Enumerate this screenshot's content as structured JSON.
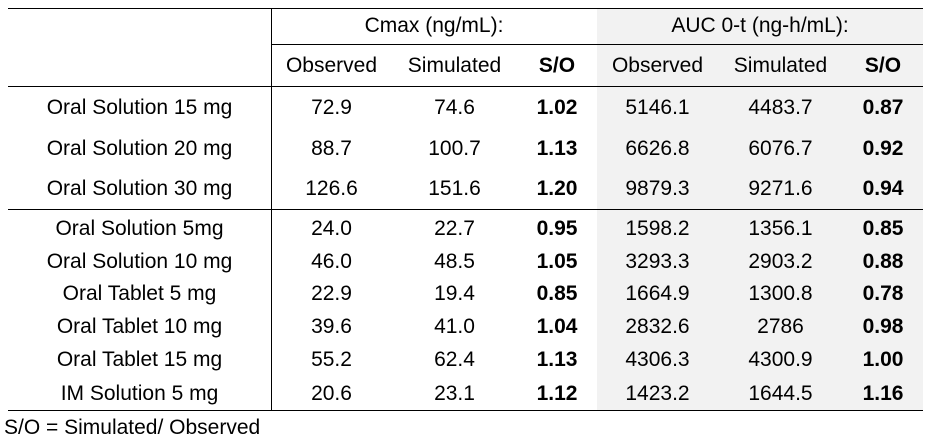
{
  "table": {
    "group_headers": [
      "Cmax (ng/mL):",
      "AUC 0-t (ng-h/mL):"
    ],
    "sub_headers": [
      "Observed",
      "Simulated",
      "S/O",
      "Observed",
      "Simulated",
      "S/O"
    ],
    "rows": [
      {
        "label": "Oral Solution 15 mg",
        "values": [
          "72.9",
          "74.6",
          "1.02",
          "5146.1",
          "4483.7",
          "0.87"
        ]
      },
      {
        "label": "Oral Solution 20 mg",
        "values": [
          "88.7",
          "100.7",
          "1.13",
          "6626.8",
          "6076.7",
          "0.92"
        ]
      },
      {
        "label": "Oral Solution 30 mg",
        "values": [
          "126.6",
          "151.6",
          "1.20",
          "9879.3",
          "9271.6",
          "0.94"
        ]
      },
      {
        "label": "Oral Solution 5mg",
        "values": [
          "24.0",
          "22.7",
          "0.95",
          "1598.2",
          "1356.1",
          "0.85"
        ]
      },
      {
        "label": "Oral Solution 10 mg",
        "values": [
          "46.0",
          "48.5",
          "1.05",
          "3293.3",
          "2903.2",
          "0.88"
        ]
      },
      {
        "label": "Oral Tablet 5 mg",
        "values": [
          "22.9",
          "19.4",
          "0.85",
          "1664.9",
          "1300.8",
          "0.78"
        ]
      },
      {
        "label": "Oral Tablet 10 mg",
        "values": [
          "39.6",
          "41.0",
          "1.04",
          "2832.6",
          "2786",
          "0.98"
        ]
      },
      {
        "label": "Oral Tablet 15 mg",
        "values": [
          "55.2",
          "62.4",
          "1.13",
          "4306.3",
          "4300.9",
          "1.00"
        ]
      },
      {
        "label": "IM Solution 5 mg",
        "values": [
          "20.6",
          "23.1",
          "1.12",
          "1423.2",
          "1644.5",
          "1.16"
        ]
      }
    ]
  },
  "footnote": "S/O = Simulated/ Observed"
}
